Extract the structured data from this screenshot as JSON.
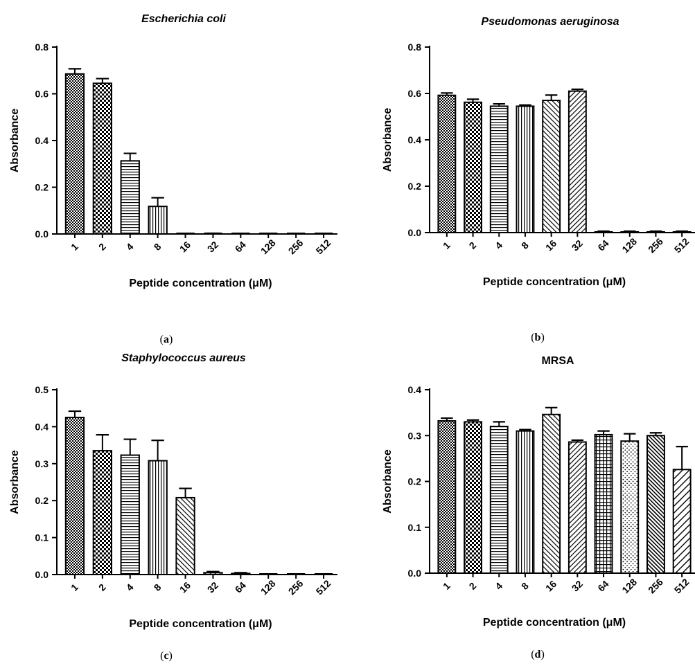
{
  "chart_data": [
    {
      "type": "bar",
      "panel_label": "(a)",
      "title": "Escherichia coli",
      "xlabel": "Peptide concentration (μM)",
      "ylabel": "Absorbance",
      "categories": [
        "1",
        "2",
        "4",
        "8",
        "16",
        "32",
        "64",
        "128",
        "256",
        "512"
      ],
      "values": [
        0.685,
        0.645,
        0.313,
        0.118,
        0.0,
        0.0,
        0.0,
        0.0,
        0.0,
        0.0
      ],
      "errors": [
        0.022,
        0.02,
        0.032,
        0.037,
        0.0,
        0.003,
        0.0,
        0.0,
        0.0,
        0.0
      ],
      "ylim": [
        0,
        0.8
      ],
      "yticks": [
        "0.0",
        "0.2",
        "0.4",
        "0.6",
        "0.8"
      ],
      "patterns": [
        "checker-fine",
        "checker-coarse",
        "hlines",
        "vlines",
        "diag",
        "diag",
        "diag",
        "diag",
        "diag",
        "diag"
      ]
    },
    {
      "type": "bar",
      "panel_label": "(b)",
      "title": "Pseudomonas aeruginosa",
      "xlabel": "Peptide concentration (μM)",
      "ylabel": "Absorbance",
      "categories": [
        "1",
        "2",
        "4",
        "8",
        "16",
        "32",
        "64",
        "128",
        "256",
        "512"
      ],
      "values": [
        0.592,
        0.562,
        0.545,
        0.545,
        0.57,
        0.61,
        0.003,
        0.003,
        0.003,
        0.003
      ],
      "errors": [
        0.01,
        0.013,
        0.01,
        0.005,
        0.023,
        0.008,
        0.003,
        0.003,
        0.003,
        0.003
      ],
      "ylim": [
        0,
        0.8
      ],
      "yticks": [
        "0.0",
        "0.2",
        "0.4",
        "0.6",
        "0.8"
      ],
      "patterns": [
        "checker-fine",
        "checker-coarse",
        "hlines",
        "vlines",
        "diag",
        "diag2",
        "diag",
        "diag",
        "diag",
        "diag"
      ]
    },
    {
      "type": "bar",
      "panel_label": "(c)",
      "title": "Staphylococcus aureus",
      "xlabel": "Peptide concentration (μM)",
      "ylabel": "Absorbance",
      "categories": [
        "1",
        "2",
        "4",
        "8",
        "16",
        "32",
        "64",
        "128",
        "256",
        "512"
      ],
      "values": [
        0.425,
        0.335,
        0.323,
        0.308,
        0.208,
        0.005,
        0.003,
        0.0,
        0.0,
        0.0
      ],
      "errors": [
        0.017,
        0.043,
        0.043,
        0.055,
        0.025,
        0.003,
        0.002,
        0.0,
        0.0,
        0.0
      ],
      "ylim": [
        0,
        0.5
      ],
      "yticks": [
        "0.0",
        "0.1",
        "0.2",
        "0.3",
        "0.4",
        "0.5"
      ],
      "patterns": [
        "checker-fine",
        "checker-coarse",
        "hlines",
        "vlines",
        "diag",
        "diag2",
        "diag",
        "diag",
        "diag",
        "diag"
      ]
    },
    {
      "type": "bar",
      "panel_label": "(d)",
      "title": "MRSA",
      "xlabel": "Peptide concentration (μM)",
      "ylabel": "Absorbance",
      "categories": [
        "1",
        "2",
        "4",
        "8",
        "16",
        "32",
        "64",
        "128",
        "256",
        "512"
      ],
      "values": [
        0.332,
        0.33,
        0.32,
        0.31,
        0.346,
        0.286,
        0.302,
        0.288,
        0.3,
        0.226
      ],
      "errors": [
        0.006,
        0.004,
        0.01,
        0.003,
        0.015,
        0.004,
        0.008,
        0.016,
        0.006,
        0.05
      ],
      "ylim": [
        0,
        0.4
      ],
      "yticks": [
        "0.0",
        "0.1",
        "0.2",
        "0.3",
        "0.4"
      ],
      "patterns": [
        "checker-fine",
        "checker-coarse",
        "hlines",
        "vlines",
        "diag",
        "diag2",
        "grid",
        "dots",
        "diag3",
        "diag4"
      ]
    }
  ]
}
